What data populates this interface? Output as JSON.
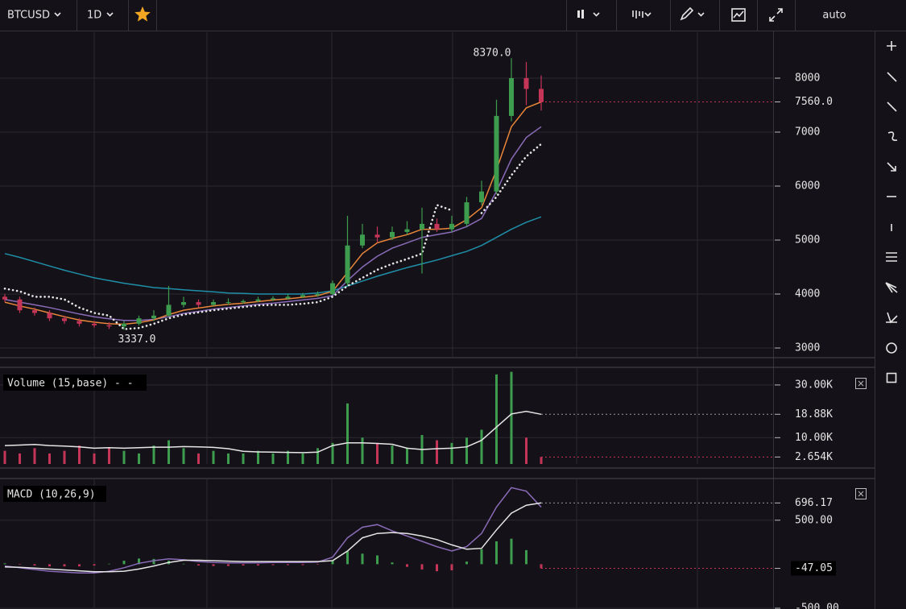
{
  "toolbar": {
    "symbol": "BTCUSD",
    "interval": "1D",
    "scale_mode": "auto"
  },
  "chart_data": [
    {
      "type": "candlestick",
      "open": [
        3950,
        3900,
        3700,
        3650,
        3550,
        3500,
        3450,
        3420,
        3400,
        3450,
        3550,
        3600,
        3800,
        3850,
        3800,
        3850,
        3850,
        3870,
        3900,
        3920,
        3950,
        3980,
        4000,
        4200,
        4900,
        5100,
        5050,
        5150,
        5200,
        5300,
        5200,
        5300,
        5700,
        5900,
        7300,
        8000,
        7800
      ],
      "high": [
        4000,
        3950,
        3750,
        3700,
        3600,
        3550,
        3500,
        3480,
        3500,
        3600,
        3700,
        4150,
        3950,
        3900,
        3900,
        3920,
        3900,
        3950,
        3960,
        4000,
        4020,
        4050,
        4250,
        5450,
        5300,
        5250,
        5250,
        5350,
        5600,
        5400,
        5450,
        5800,
        6100,
        7600,
        8370,
        8300,
        8050
      ],
      "low": [
        3850,
        3650,
        3600,
        3500,
        3450,
        3400,
        3380,
        3350,
        3337,
        3420,
        3500,
        3580,
        3750,
        3750,
        3780,
        3800,
        3820,
        3850,
        3870,
        3900,
        3930,
        3950,
        3980,
        4150,
        4850,
        4950,
        5000,
        5100,
        4380,
        5150,
        5150,
        5250,
        5650,
        5850,
        7200,
        7500,
        7400
      ],
      "close": [
        3900,
        3700,
        3650,
        3550,
        3500,
        3450,
        3420,
        3400,
        3450,
        3550,
        3600,
        3800,
        3850,
        3800,
        3850,
        3850,
        3870,
        3900,
        3920,
        3950,
        3980,
        4000,
        4200,
        4900,
        5100,
        5050,
        5150,
        5200,
        5300,
        5200,
        5300,
        5700,
        5900,
        7300,
        8000,
        7800,
        7560
      ],
      "up_color": "#3d9c4e",
      "down_color": "#c53557",
      "max_label": "8370.0",
      "min_label": "3337.0",
      "last_label": "7560.0",
      "series": [
        {
          "color": "#1f8ea8",
          "style": "solid",
          "values": [
            4750,
            4680,
            4600,
            4520,
            4440,
            4370,
            4300,
            4250,
            4200,
            4160,
            4120,
            4100,
            4080,
            4060,
            4040,
            4020,
            4010,
            4000,
            4000,
            4000,
            4000,
            4020,
            4060,
            4150,
            4240,
            4330,
            4410,
            4490,
            4560,
            4630,
            4710,
            4790,
            4900,
            5050,
            5200,
            5330,
            5430
          ]
        },
        {
          "color": "#8a6bb8",
          "style": "solid",
          "values": [
            3900,
            3850,
            3800,
            3750,
            3690,
            3630,
            3580,
            3540,
            3510,
            3510,
            3530,
            3580,
            3640,
            3680,
            3720,
            3750,
            3780,
            3810,
            3830,
            3860,
            3890,
            3920,
            3970,
            4250,
            4500,
            4700,
            4850,
            4950,
            5050,
            5100,
            5150,
            5250,
            5400,
            5900,
            6500,
            6900,
            7100
          ]
        },
        {
          "color": "#e8853a",
          "style": "solid",
          "values": [
            3850,
            3780,
            3720,
            3650,
            3580,
            3520,
            3480,
            3450,
            3440,
            3470,
            3520,
            3620,
            3700,
            3740,
            3780,
            3810,
            3830,
            3860,
            3890,
            3910,
            3940,
            3970,
            4050,
            4400,
            4750,
            4950,
            5030,
            5100,
            5200,
            5200,
            5220,
            5380,
            5600,
            6300,
            7100,
            7450,
            7560
          ]
        },
        {
          "color": "#e6e6e6",
          "style": "dotted",
          "values": [
            4100,
            4050,
            3950,
            3950,
            3900,
            3750,
            3650,
            3600,
            3350,
            3370,
            3450,
            3550,
            3620,
            3660,
            3700,
            3730,
            3760,
            3790,
            3800,
            3800,
            3820,
            3850,
            3950,
            4150,
            4300,
            4450,
            4560,
            4650,
            4750,
            5650,
            5550,
            null,
            5500,
            5800,
            6200,
            6550,
            6780
          ]
        }
      ],
      "ylim": [
        2836,
        8851
      ],
      "yticks": [
        3000,
        4000,
        5000,
        6000,
        7000,
        8000
      ],
      "grid": true
    },
    {
      "type": "volume",
      "legend": "Volume (15,base) - -",
      "values": [
        5,
        4,
        6,
        4,
        5,
        7,
        4,
        6,
        5,
        4,
        7,
        9,
        6,
        4,
        5,
        4,
        4,
        5,
        4,
        5,
        4,
        6,
        8,
        23,
        10,
        8,
        7,
        6,
        11,
        9,
        8,
        10,
        13,
        34,
        35,
        10,
        2.654
      ],
      "last_label": "2.654K",
      "ma": {
        "color": "#e6e6e6",
        "values": [
          7,
          7.2,
          7.4,
          7,
          6.8,
          6.5,
          6,
          6.2,
          6,
          6.2,
          6.4,
          6.4,
          6.6,
          6.5,
          6.3,
          5.8,
          4.8,
          4.6,
          4.5,
          4.4,
          4.3,
          4.5,
          7,
          8,
          8,
          7.8,
          7.5,
          6,
          5.5,
          5.8,
          6,
          6.5,
          9,
          14,
          19,
          20,
          18.88
        ],
        "last_label": "18.88K"
      },
      "ylim": [
        0,
        36.7
      ],
      "yticks": [
        {
          "value": 30,
          "label": "30.00K"
        },
        {
          "value": 10,
          "label": "10.00K"
        }
      ],
      "grid": true
    },
    {
      "type": "macd",
      "legend": "MACD (10,26,9)",
      "macd": {
        "color": "#8a6bb8",
        "values": [
          -20,
          -40,
          -60,
          -80,
          -90,
          -100,
          -100,
          -80,
          -40,
          10,
          40,
          60,
          50,
          30,
          20,
          15,
          15,
          15,
          20,
          20,
          20,
          25,
          80,
          300,
          420,
          450,
          380,
          320,
          260,
          200,
          150,
          200,
          350,
          650,
          870,
          830,
          649.12
        ]
      },
      "signal": {
        "color": "#e6e6e6",
        "values": [
          -30,
          -35,
          -45,
          -55,
          -65,
          -75,
          -85,
          -85,
          -80,
          -55,
          -20,
          20,
          45,
          45,
          40,
          35,
          30,
          30,
          30,
          30,
          30,
          30,
          40,
          150,
          300,
          350,
          360,
          350,
          320,
          280,
          220,
          170,
          180,
          390,
          580,
          670,
          696.17
        ],
        "last_label": "696.17"
      },
      "histogram": {
        "up_color": "#3d9c4e",
        "down_color": "#c53557",
        "values": [
          10,
          -5,
          -15,
          -25,
          -25,
          -25,
          -15,
          5,
          40,
          65,
          60,
          40,
          5,
          -15,
          -20,
          -20,
          -15,
          -15,
          -10,
          -10,
          -10,
          -5,
          40,
          150,
          120,
          100,
          20,
          -30,
          -60,
          -80,
          -70,
          30,
          170,
          260,
          290,
          160,
          -47.05
        ],
        "last_label": "-47.05"
      },
      "ylim": [
        -509,
        974
      ],
      "yticks": [
        {
          "value": 500,
          "label": "500.00"
        },
        {
          "value": -500,
          "label": "-500.00"
        }
      ],
      "grid": true
    }
  ]
}
